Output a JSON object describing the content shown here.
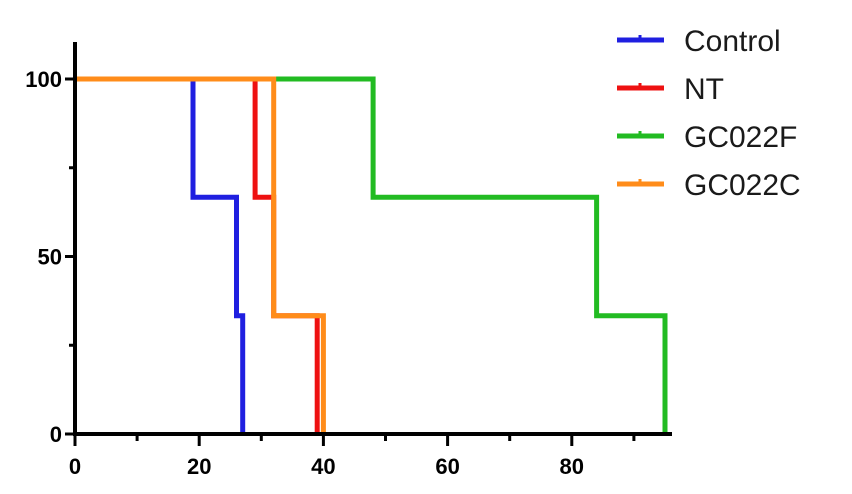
{
  "chart_data": {
    "type": "line",
    "step": true,
    "xlim": [
      0,
      95
    ],
    "ylim": [
      0,
      100
    ],
    "x_ticks": [
      0,
      20,
      40,
      60,
      80
    ],
    "y_ticks": [
      0,
      50,
      100
    ],
    "legend_position": "top-right",
    "series": [
      {
        "name": "Control",
        "color": "#1f1fe0",
        "points": [
          [
            0,
            100
          ],
          [
            19,
            100
          ],
          [
            19,
            66.7
          ],
          [
            26,
            66.7
          ],
          [
            26,
            33.3
          ],
          [
            27,
            33.3
          ],
          [
            27,
            0
          ]
        ]
      },
      {
        "name": "NT",
        "color": "#ee1111",
        "points": [
          [
            0,
            100
          ],
          [
            29,
            100
          ],
          [
            29,
            66.7
          ],
          [
            32,
            66.7
          ],
          [
            32,
            33.3
          ],
          [
            39,
            33.3
          ],
          [
            39,
            0
          ]
        ]
      },
      {
        "name": "GC022F",
        "color": "#22bb22",
        "points": [
          [
            0,
            100
          ],
          [
            48,
            100
          ],
          [
            48,
            66.7
          ],
          [
            84,
            66.7
          ],
          [
            84,
            33.3
          ],
          [
            95,
            33.3
          ],
          [
            95,
            0
          ]
        ]
      },
      {
        "name": "GC022C",
        "color": "#ff8c1a",
        "points": [
          [
            0,
            100
          ],
          [
            32,
            100
          ],
          [
            32,
            66.7
          ],
          [
            32,
            33.3
          ],
          [
            40,
            33.3
          ],
          [
            40,
            0
          ]
        ]
      }
    ]
  }
}
